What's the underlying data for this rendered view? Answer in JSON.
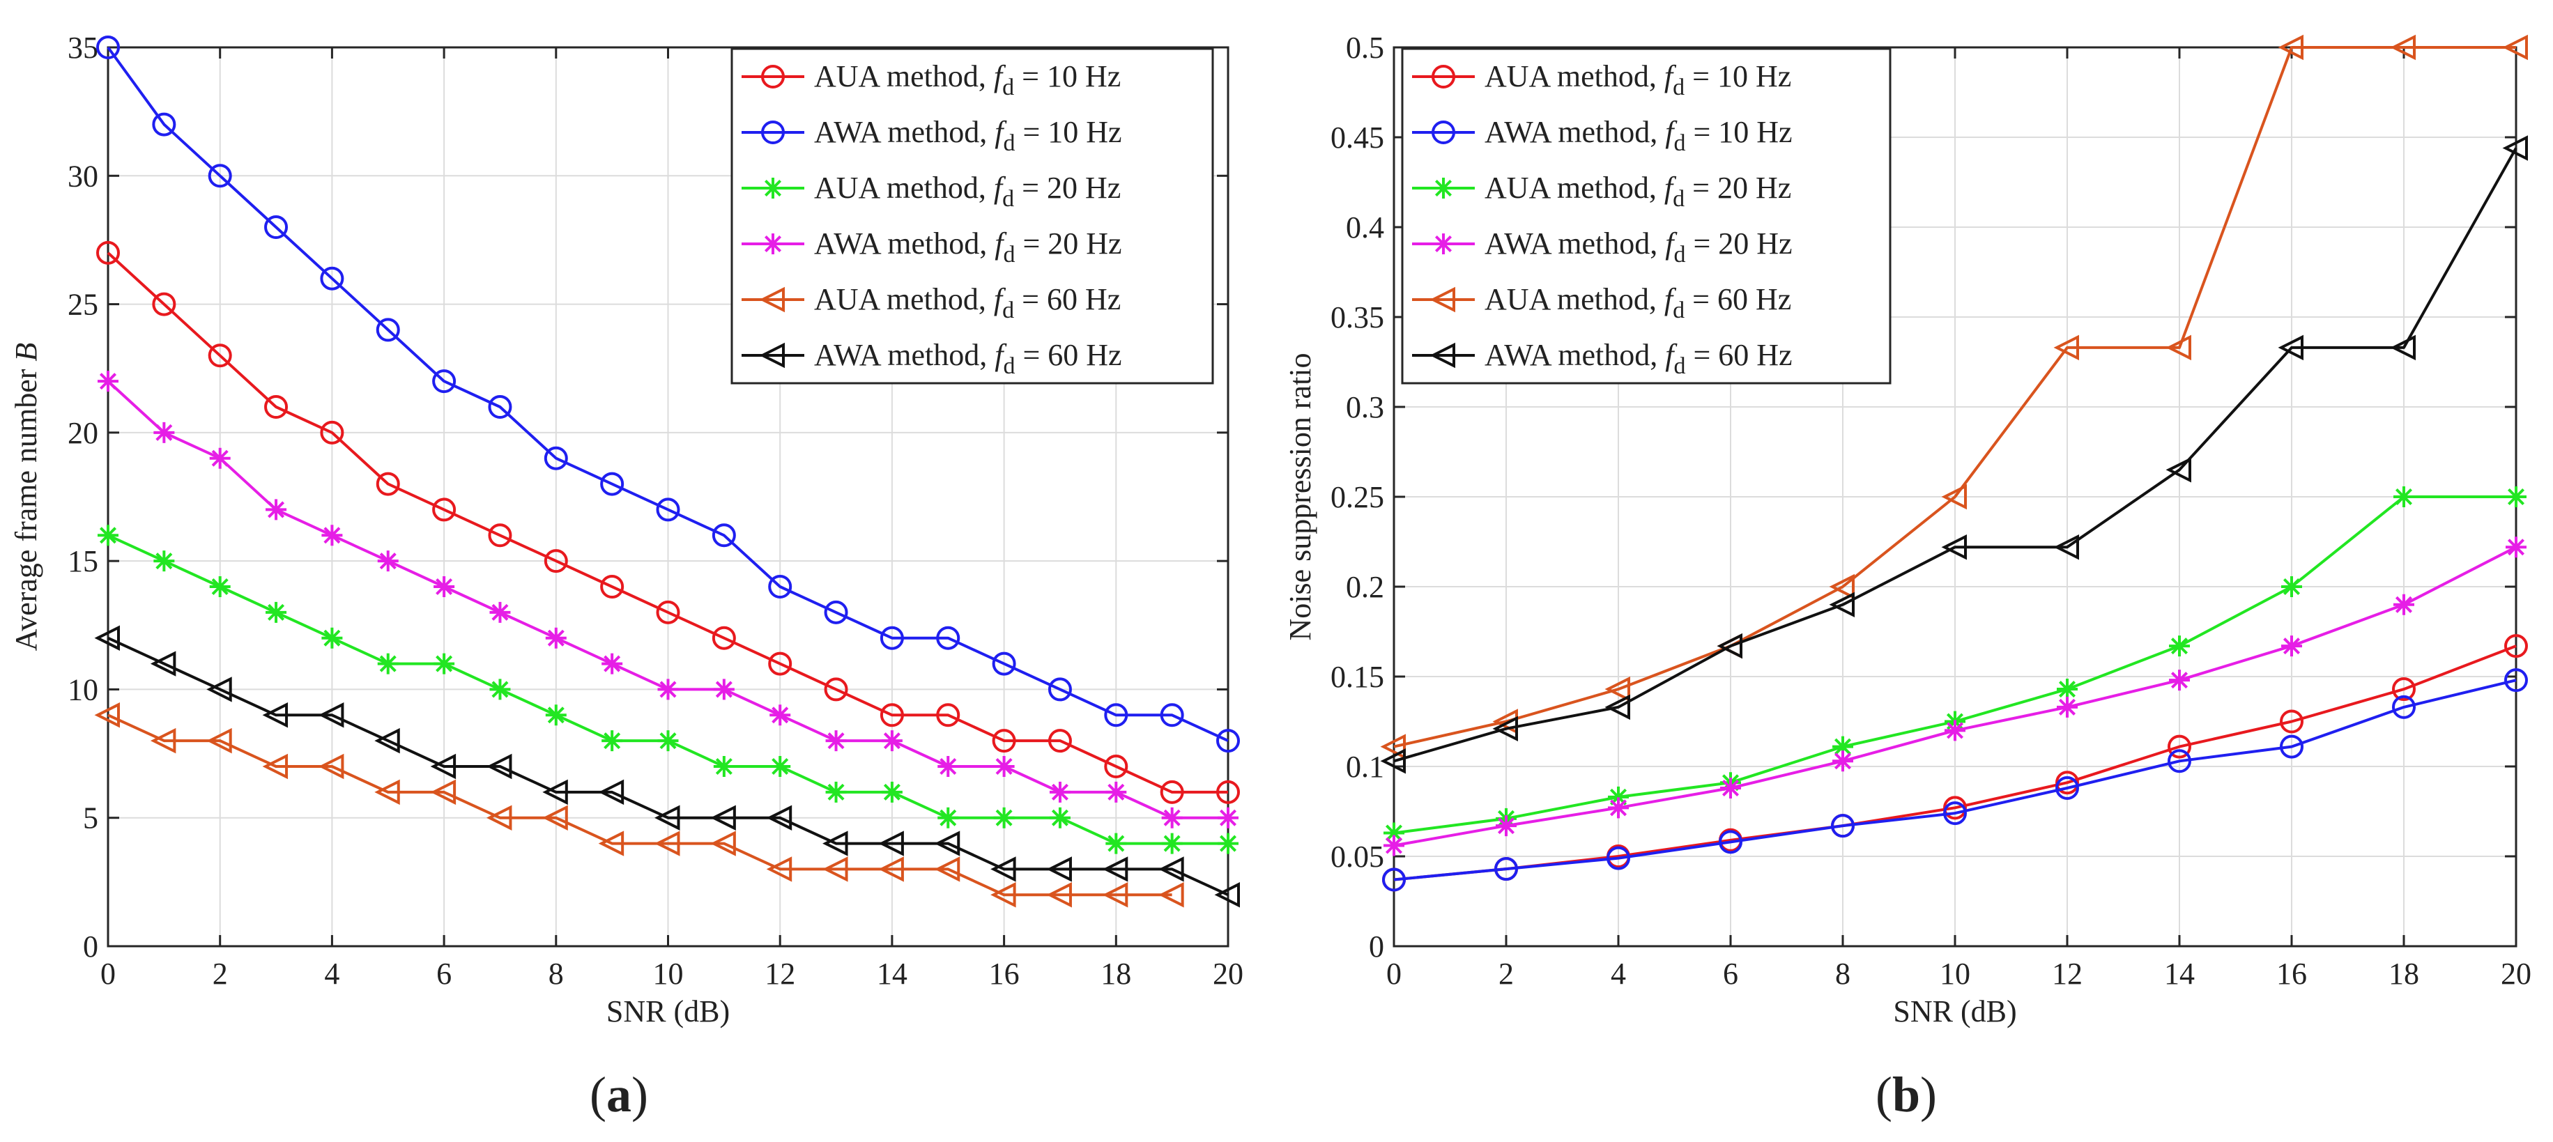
{
  "chart_data": [
    {
      "type": "line",
      "panel_label": "(a)",
      "xlabel": "SNR (dB)",
      "ylabel": "Average frame number B",
      "xlim": [
        0,
        20
      ],
      "ylim": [
        0,
        35
      ],
      "xticks": [
        0,
        2,
        4,
        6,
        8,
        10,
        12,
        14,
        16,
        18,
        20
      ],
      "yticks": [
        0,
        5,
        10,
        15,
        20,
        25,
        30,
        35
      ],
      "grid": true,
      "legend_position": "top-right",
      "x": [
        0,
        1,
        2,
        3,
        4,
        5,
        6,
        7,
        8,
        9,
        10,
        11,
        12,
        13,
        14,
        15,
        16,
        17,
        18,
        19,
        20
      ],
      "series": [
        {
          "legend_method": "AUA method, ",
          "legend_freq": " = 10 Hz",
          "color": "#e8191e",
          "marker": "circle",
          "values": [
            27,
            25,
            23,
            21,
            20,
            18,
            17,
            16,
            15,
            14,
            13,
            12,
            11,
            10,
            9,
            9,
            8,
            8,
            7,
            6,
            6
          ]
        },
        {
          "legend_method": "AWA method, ",
          "legend_freq": " = 10 Hz",
          "color": "#1f1ff0",
          "marker": "circle",
          "values": [
            35,
            32,
            30,
            28,
            26,
            24,
            22,
            21,
            19,
            18,
            17,
            16,
            14,
            13,
            12,
            12,
            11,
            10,
            9,
            9,
            8
          ]
        },
        {
          "legend_method": "AUA method, ",
          "legend_freq": " = 20 Hz",
          "color": "#22e622",
          "marker": "star",
          "values": [
            16,
            15,
            14,
            13,
            12,
            11,
            11,
            10,
            9,
            8,
            8,
            7,
            7,
            6,
            6,
            5,
            5,
            5,
            4,
            4,
            4
          ]
        },
        {
          "legend_method": "AWA method, ",
          "legend_freq": " = 20 Hz",
          "color": "#e61ee6",
          "marker": "star",
          "values": [
            22,
            20,
            19,
            17,
            16,
            15,
            14,
            13,
            12,
            11,
            10,
            10,
            9,
            8,
            8,
            7,
            7,
            6,
            6,
            5,
            5
          ]
        },
        {
          "legend_method": "AUA method, ",
          "legend_freq": " = 60 Hz",
          "color": "#d9541e",
          "marker": "triangle-left",
          "values": [
            9,
            8,
            8,
            7,
            7,
            6,
            6,
            5,
            5,
            4,
            4,
            4,
            3,
            3,
            3,
            3,
            2,
            2,
            2,
            2,
            null
          ]
        },
        {
          "legend_method": "AWA method, ",
          "legend_freq": " = 60 Hz",
          "color": "#111111",
          "marker": "triangle-left",
          "values": [
            12,
            11,
            10,
            9,
            9,
            8,
            7,
            7,
            6,
            6,
            5,
            5,
            5,
            4,
            4,
            4,
            3,
            3,
            3,
            3,
            2
          ]
        }
      ]
    },
    {
      "type": "line",
      "panel_label": "(b)",
      "xlabel": "SNR (dB)",
      "ylabel": "Noise suppression ratio",
      "xlim": [
        0,
        20
      ],
      "ylim": [
        0,
        0.5
      ],
      "xticks": [
        0,
        2,
        4,
        6,
        8,
        10,
        12,
        14,
        16,
        18,
        20
      ],
      "yticks": [
        0,
        0.05,
        0.1,
        0.15,
        0.2,
        0.25,
        0.3,
        0.35,
        0.4,
        0.45,
        0.5
      ],
      "ytick_labels": [
        "0",
        "0.05",
        "0.1",
        "0.15",
        "0.2",
        "0.25",
        "0.3",
        "0.35",
        "0.4",
        "0.45",
        "0.5"
      ],
      "grid": true,
      "legend_position": "top-left",
      "x": [
        0,
        2,
        4,
        6,
        8,
        10,
        12,
        14,
        16,
        18,
        20
      ],
      "series": [
        {
          "legend_method": "AUA method, ",
          "legend_freq": " = 10 Hz",
          "color": "#e8191e",
          "marker": "circle",
          "values": [
            0.037,
            0.043,
            0.05,
            0.059,
            0.067,
            0.077,
            0.091,
            0.111,
            0.125,
            0.143,
            0.167
          ]
        },
        {
          "legend_method": "AWA method, ",
          "legend_freq": " = 10 Hz",
          "color": "#1f1ff0",
          "marker": "circle",
          "values": [
            0.037,
            0.043,
            0.049,
            0.058,
            0.067,
            0.074,
            0.088,
            0.103,
            0.111,
            0.133,
            0.148
          ]
        },
        {
          "legend_method": "AUA method, ",
          "legend_freq": " = 20 Hz",
          "color": "#22e622",
          "marker": "star",
          "values": [
            0.063,
            0.071,
            0.083,
            0.091,
            0.111,
            0.125,
            0.143,
            0.167,
            0.2,
            0.25,
            0.25
          ]
        },
        {
          "legend_method": "AWA method, ",
          "legend_freq": " = 20 Hz",
          "color": "#e61ee6",
          "marker": "star",
          "values": [
            0.056,
            0.067,
            0.077,
            0.088,
            0.103,
            0.12,
            0.133,
            0.148,
            0.167,
            0.19,
            0.222
          ]
        },
        {
          "legend_method": "AUA method, ",
          "legend_freq": " = 60 Hz",
          "color": "#d9541e",
          "marker": "triangle-left",
          "values": [
            0.111,
            0.125,
            0.143,
            0.167,
            0.2,
            0.25,
            0.333,
            0.333,
            0.5,
            0.5,
            0.5
          ]
        },
        {
          "legend_method": "AWA method, ",
          "legend_freq": " = 60 Hz",
          "color": "#111111",
          "marker": "triangle-left",
          "values": [
            0.103,
            0.121,
            0.133,
            0.167,
            0.19,
            0.222,
            0.222,
            0.265,
            0.333,
            0.333,
            0.444
          ]
        }
      ]
    }
  ]
}
